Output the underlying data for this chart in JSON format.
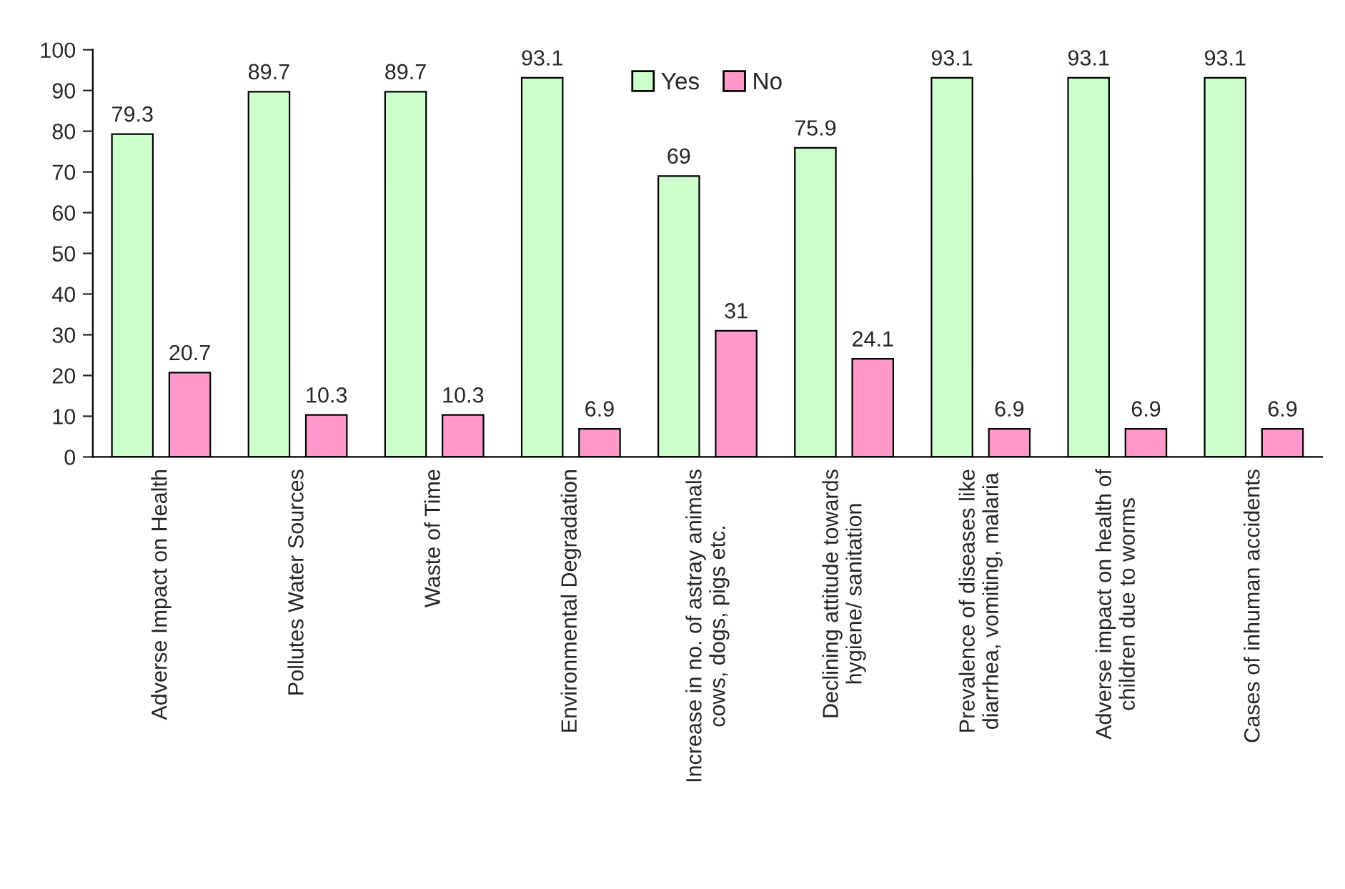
{
  "chart_data": {
    "type": "bar",
    "categories": [
      "Adverse Impact on Health",
      "Pollutes Water Sources",
      "Waste of Time",
      "Environmental Degradation",
      "Increase in no. of astray animals\ncows, dogs, pigs etc.",
      "Declining attitude towards\nhygiene/ sanitation",
      "Prevalence of diseases like\ndiarrhea, vomiting, malaria",
      "Adverse impact on health of\nchildren due to worms",
      "Cases of inhuman accidents"
    ],
    "series": [
      {
        "name": "Yes",
        "color": "#ccffcc",
        "values": [
          79.3,
          89.7,
          89.7,
          93.1,
          69,
          75.9,
          93.1,
          93.1,
          93.1
        ]
      },
      {
        "name": "No",
        "color": "#ff99cc",
        "values": [
          20.7,
          10.3,
          10.3,
          6.9,
          31,
          24.1,
          6.9,
          6.9,
          6.9
        ]
      }
    ],
    "ylim": [
      0,
      100
    ],
    "yticks": [
      0,
      10,
      20,
      30,
      40,
      50,
      60,
      70,
      80,
      90,
      100
    ],
    "data_labels": true,
    "legend": "top",
    "grid": false
  }
}
